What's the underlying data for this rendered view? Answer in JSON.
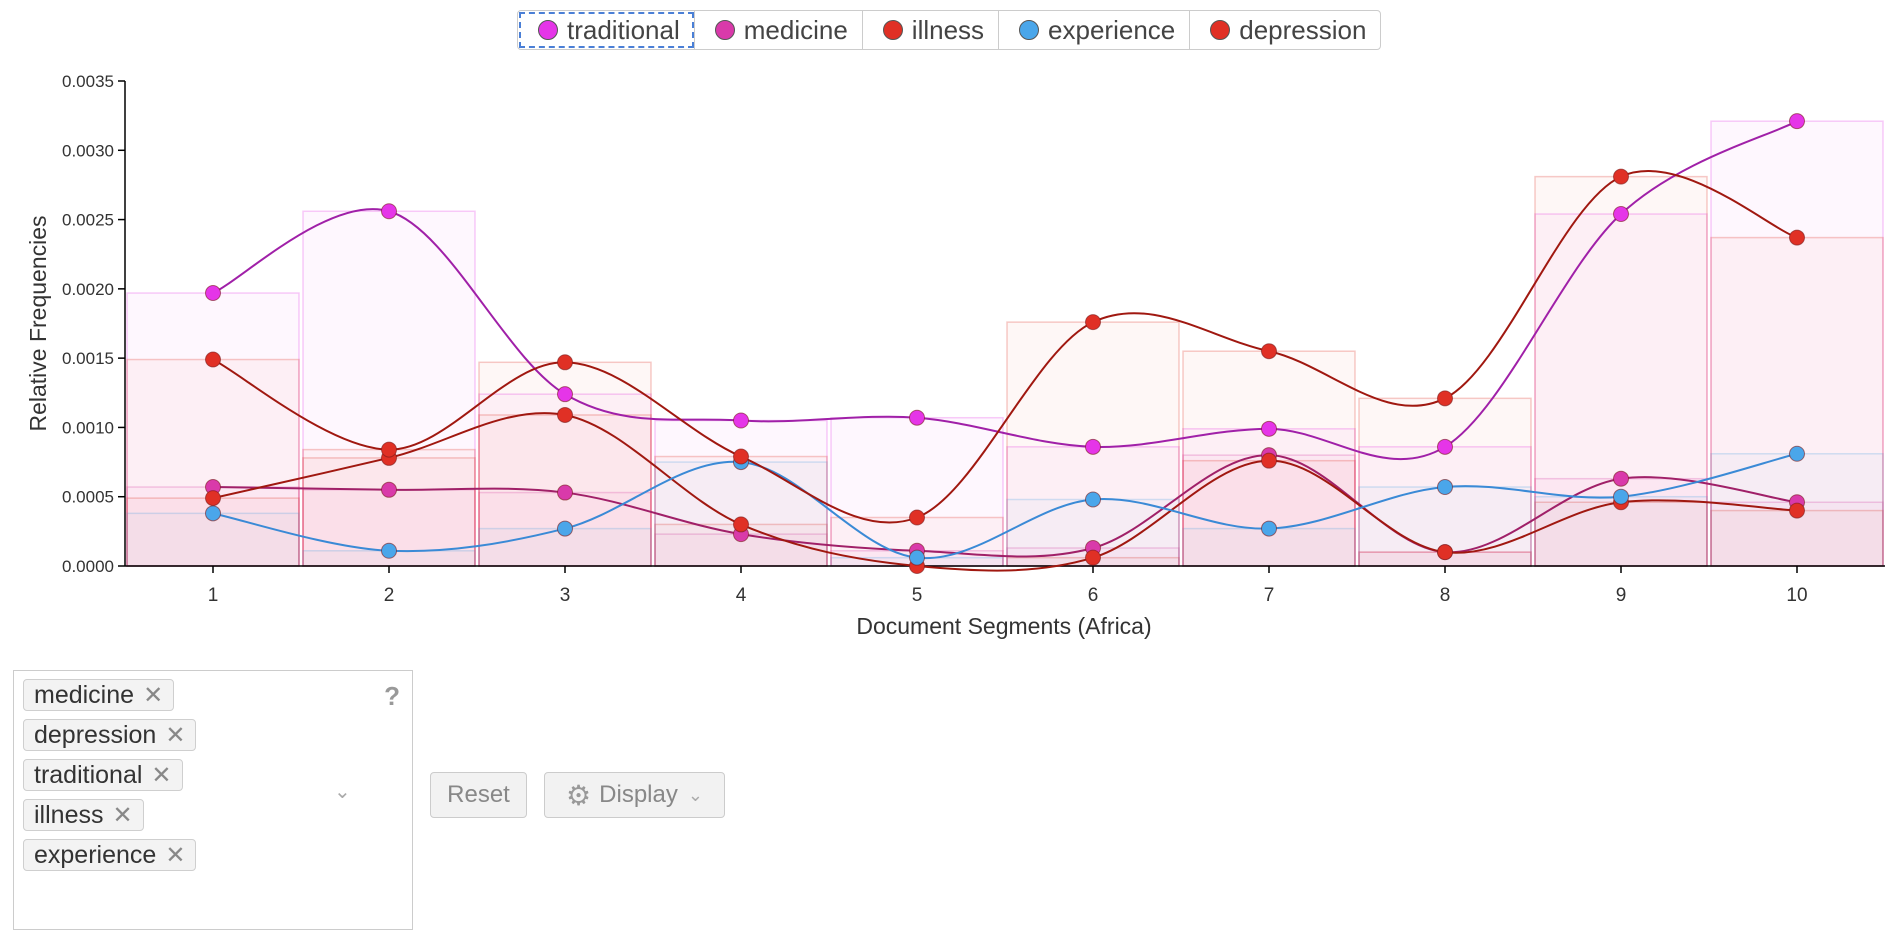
{
  "legend": [
    {
      "name": "traditional",
      "color": "#e535e8",
      "active": true
    },
    {
      "name": "medicine",
      "color": "#d93aaa",
      "active": false
    },
    {
      "name": "illness",
      "color": "#e03025",
      "active": false
    },
    {
      "name": "experience",
      "color": "#4aa6ea",
      "active": false
    },
    {
      "name": "depression",
      "color": "#e03025",
      "active": false
    }
  ],
  "chart_data": {
    "type": "line",
    "xlabel": "Document Segments (Africa)",
    "ylabel": "Relative Frequencies",
    "x": [
      1,
      2,
      3,
      4,
      5,
      6,
      7,
      8,
      9,
      10
    ],
    "ylim": [
      0,
      0.0035
    ],
    "yticks": [
      "0.0000",
      "0.0005",
      "0.0010",
      "0.0015",
      "0.0020",
      "0.0025",
      "0.0030",
      "0.0035"
    ],
    "series": [
      {
        "name": "traditional",
        "color": "#e535e8",
        "line_color": "#a020a8",
        "values": [
          0.00197,
          0.00256,
          0.00124,
          0.00105,
          0.00107,
          0.00086,
          0.00099,
          0.00086,
          0.00254,
          0.00321
        ]
      },
      {
        "name": "medicine",
        "color": "#d93aaa",
        "line_color": "#a02068",
        "values": [
          0.00057,
          0.00055,
          0.00053,
          0.00023,
          0.00011,
          0.00013,
          0.0008,
          0.0001,
          0.00063,
          0.00046
        ]
      },
      {
        "name": "illness",
        "color": "#e03025",
        "line_color": "#a01810",
        "values": [
          0.00049,
          0.00078,
          0.00109,
          0.0003,
          0.0,
          6e-05,
          0.00076,
          0.0001,
          0.00046,
          0.0004
        ]
      },
      {
        "name": "experience",
        "color": "#4aa6ea",
        "line_color": "#3a8ad6",
        "values": [
          0.00038,
          0.00011,
          0.00027,
          0.00075,
          6e-05,
          0.00048,
          0.00027,
          0.00057,
          0.0005,
          0.00081
        ]
      },
      {
        "name": "depression",
        "color": "#e03025",
        "line_color": "#a01810",
        "values": [
          0.00149,
          0.00084,
          0.00147,
          0.00079,
          0.00035,
          0.00176,
          0.00155,
          0.00121,
          0.00281,
          0.00237
        ]
      }
    ],
    "grid": false
  },
  "terms": [
    "medicine",
    "depression",
    "traditional",
    "illness",
    "experience"
  ],
  "controls": {
    "help": "?",
    "reset": "Reset",
    "display": "Display"
  }
}
